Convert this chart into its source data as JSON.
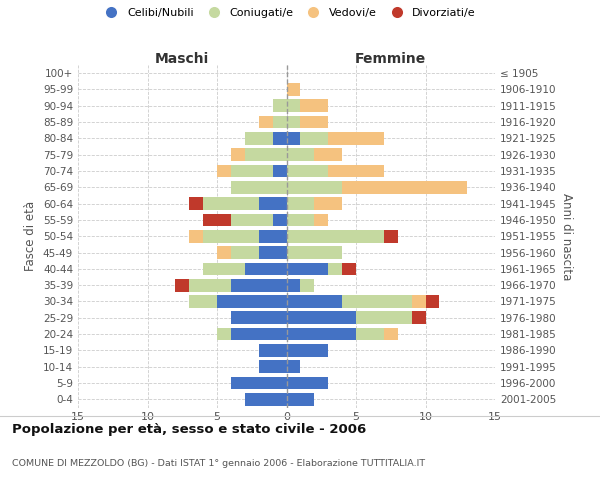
{
  "age_groups": [
    "100+",
    "95-99",
    "90-94",
    "85-89",
    "80-84",
    "75-79",
    "70-74",
    "65-69",
    "60-64",
    "55-59",
    "50-54",
    "45-49",
    "40-44",
    "35-39",
    "30-34",
    "25-29",
    "20-24",
    "15-19",
    "10-14",
    "5-9",
    "0-4"
  ],
  "birth_years": [
    "≤ 1905",
    "1906-1910",
    "1911-1915",
    "1916-1920",
    "1921-1925",
    "1926-1930",
    "1931-1935",
    "1936-1940",
    "1941-1945",
    "1946-1950",
    "1951-1955",
    "1956-1960",
    "1961-1965",
    "1966-1970",
    "1971-1975",
    "1976-1980",
    "1981-1985",
    "1986-1990",
    "1991-1995",
    "1996-2000",
    "2001-2005"
  ],
  "male": {
    "celibi": [
      0,
      0,
      0,
      0,
      1,
      0,
      1,
      0,
      2,
      1,
      2,
      2,
      3,
      4,
      5,
      4,
      4,
      2,
      2,
      4,
      3
    ],
    "coniugati": [
      0,
      0,
      1,
      1,
      2,
      3,
      3,
      4,
      4,
      3,
      4,
      2,
      3,
      3,
      2,
      0,
      1,
      0,
      0,
      0,
      0
    ],
    "vedovi": [
      0,
      0,
      0,
      1,
      0,
      1,
      1,
      0,
      0,
      0,
      1,
      1,
      0,
      0,
      0,
      0,
      0,
      0,
      0,
      0,
      0
    ],
    "divorziati": [
      0,
      0,
      0,
      0,
      0,
      0,
      0,
      0,
      1,
      2,
      0,
      0,
      0,
      1,
      0,
      0,
      0,
      0,
      0,
      0,
      0
    ]
  },
  "female": {
    "nubili": [
      0,
      0,
      0,
      0,
      1,
      0,
      0,
      0,
      0,
      0,
      0,
      0,
      3,
      1,
      4,
      5,
      5,
      3,
      1,
      3,
      2
    ],
    "coniugate": [
      0,
      0,
      1,
      1,
      2,
      2,
      3,
      4,
      2,
      2,
      7,
      4,
      1,
      1,
      5,
      4,
      2,
      0,
      0,
      0,
      0
    ],
    "vedove": [
      0,
      1,
      2,
      2,
      4,
      2,
      4,
      9,
      2,
      1,
      0,
      0,
      0,
      0,
      1,
      0,
      1,
      0,
      0,
      0,
      0
    ],
    "divorziate": [
      0,
      0,
      0,
      0,
      0,
      0,
      0,
      0,
      0,
      0,
      1,
      0,
      1,
      0,
      1,
      1,
      0,
      0,
      0,
      0,
      0
    ]
  },
  "colors": {
    "celibi_nubili": "#4472C4",
    "coniugati": "#C5D9A0",
    "vedovi": "#F5C27F",
    "divorziati": "#C0392B"
  },
  "xlim": 15,
  "title": "Popolazione per età, sesso e stato civile - 2006",
  "subtitle": "COMUNE DI MEZZOLDO (BG) - Dati ISTAT 1° gennaio 2006 - Elaborazione TUTTITALIA.IT",
  "ylabel_left": "Fasce di età",
  "ylabel_right": "Anni di nascita",
  "xlabel_maschi": "Maschi",
  "xlabel_femmine": "Femmine",
  "legend_labels": [
    "Celibi/Nubili",
    "Coniugati/e",
    "Vedovi/e",
    "Divorziati/e"
  ]
}
